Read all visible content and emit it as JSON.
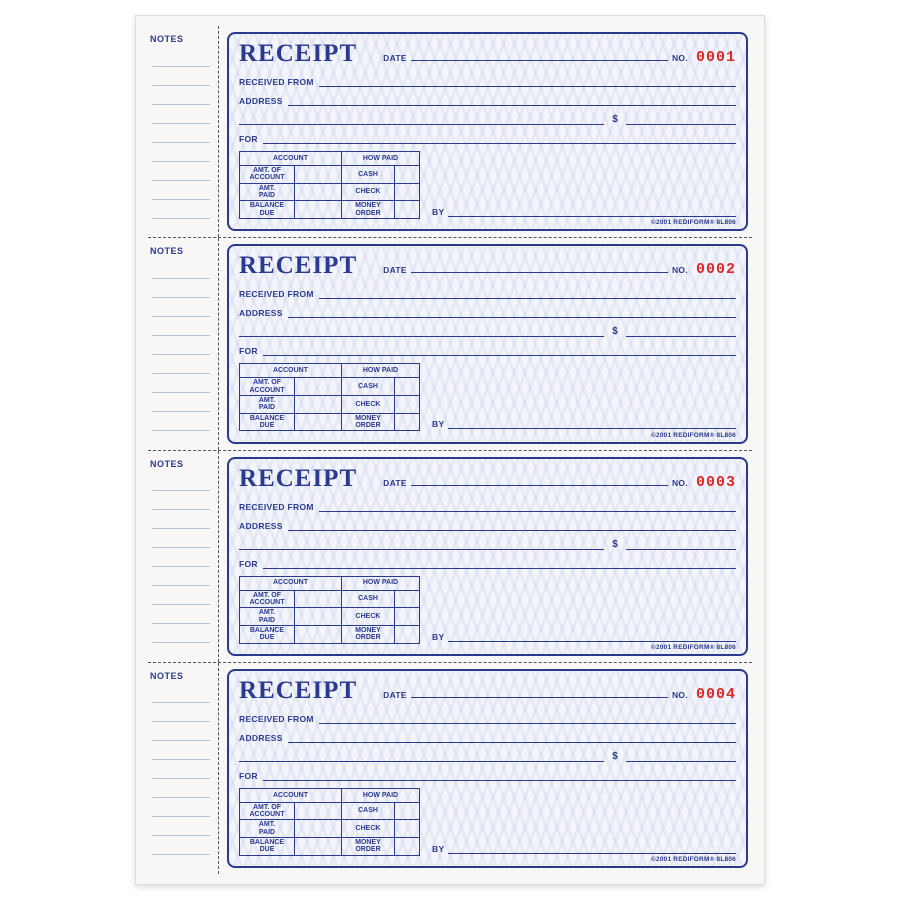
{
  "colors": {
    "ink": "#2a3a8f",
    "number": "#d82a2a",
    "paper": "#f8f7f5",
    "receipt_bg": "#f4f5fb",
    "pattern": "rgba(120,140,200,0.10)",
    "perforation": "#555555"
  },
  "labels": {
    "notes": "NOTES",
    "title": "RECEIPT",
    "date": "DATE",
    "no": "NO.",
    "received_from": "RECEIVED FROM",
    "address": "ADDRESS",
    "dollar": "$",
    "for": "FOR",
    "by": "BY",
    "account": "ACCOUNT",
    "how_paid": "HOW PAID",
    "amt_of_account": "AMT. OF\nACCOUNT",
    "amt_paid": "AMT.\nPAID",
    "balance_due": "BALANCE\nDUE",
    "cash": "CASH",
    "check": "CHECK",
    "money_order": "MONEY\nORDER",
    "footer": "©2001 REDIFORM® 8L806"
  },
  "receipts": [
    {
      "number": "0001"
    },
    {
      "number": "0002"
    },
    {
      "number": "0003"
    },
    {
      "number": "0004"
    }
  ],
  "layout": {
    "book_width": 630,
    "book_height": 870,
    "receipt_border_radius": 8,
    "title_fontsize": 25,
    "number_fontsize": 15,
    "label_fontsize": 8.5
  }
}
